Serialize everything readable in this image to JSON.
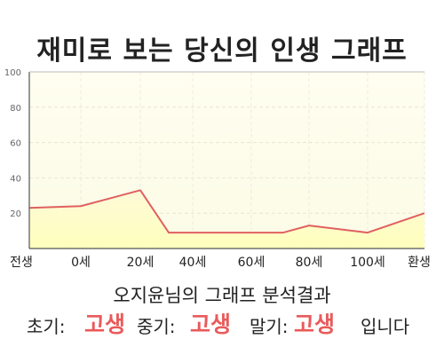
{
  "title": "재미로 보는 당신의 인생 그래프",
  "chart_data": {
    "type": "area",
    "title": "재미로 보는 당신의 인생 그래프",
    "x_labels": [
      "전생",
      "0세",
      "20세",
      "40세",
      "60세",
      "80세",
      "100세",
      "환생"
    ],
    "points": [
      {
        "x": "전생",
        "y": 23
      },
      {
        "x": "0세",
        "y": 24
      },
      {
        "x": "20세",
        "y": 33
      },
      {
        "x": "30세",
        "y": 9
      },
      {
        "x": "70세",
        "y": 9
      },
      {
        "x": "80세",
        "y": 13
      },
      {
        "x": "100세",
        "y": 9
      },
      {
        "x": "환생",
        "y": 20
      }
    ],
    "ylim": [
      0,
      100
    ],
    "yticks": [
      20,
      40,
      60,
      80,
      100
    ],
    "grid": true,
    "colors": {
      "line": "#e06060",
      "fill_top": "#fdfbd9",
      "fill_bottom": "#ffffbf",
      "area_bg": "#fffff3"
    }
  },
  "subtitle": "오지윤님의 그래프 분석결과",
  "summary": {
    "early_label": "초기:",
    "early_value": "고생",
    "middle_label": "중기:",
    "middle_value": "고생",
    "late_label": "말기:",
    "late_value": "고생",
    "ending": "입니다"
  }
}
